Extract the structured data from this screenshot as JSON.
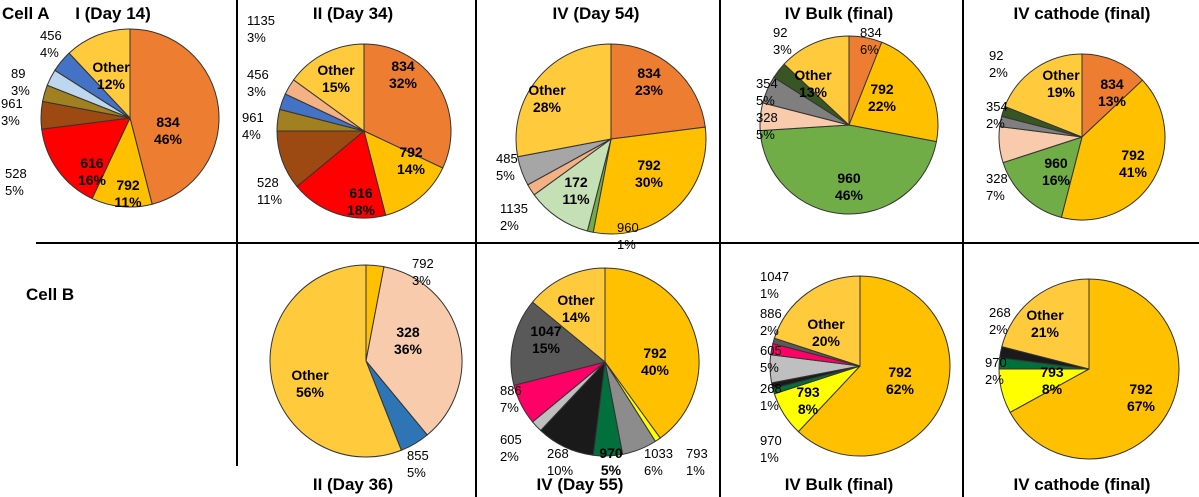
{
  "row_labels": {
    "a": "Cell A",
    "b": "Cell B"
  },
  "titles": {
    "a1": "I (Day 14)",
    "a2": "II (Day 34)",
    "a3": "IV (Day 54)",
    "a4": "IV Bulk (final)",
    "a5": "IV cathode (final)",
    "b2": "II (Day 36)",
    "b3": "IV (Day 55)",
    "b4": "IV Bulk (final)",
    "b5": "IV cathode (final)"
  },
  "colors": {
    "834": "#ED7D31",
    "792": "#FFC000",
    "616": "#FF0000",
    "528": "#9C4A12",
    "961": "#A08020",
    "89": "#BDD7EE",
    "456": "#4472C4",
    "other": "#FFCB3D",
    "1135": "#F4B183",
    "960": "#70AD47",
    "172": "#C5E0B4",
    "485": "#A6A6A6",
    "354": "#7F7F7F",
    "328": "#F8CBAD",
    "92": "#375623",
    "855": "#2E75B6",
    "1047": "#595959",
    "886": "#FF0066",
    "605": "#BFBFBF",
    "268": "#1A1A1A",
    "970": "#00703C",
    "1033": "#8C8C8C",
    "793": "#FFFF00"
  },
  "chart_data": [
    {
      "id": "a1",
      "type": "pie",
      "title": "I (Day 14)",
      "slices": [
        {
          "label": "834",
          "value": 46,
          "display": "46%",
          "color_key": "834"
        },
        {
          "label": "792",
          "value": 11,
          "display": "11%",
          "color_key": "792"
        },
        {
          "label": "616",
          "value": 16,
          "display": "16%",
          "color_key": "616"
        },
        {
          "label": "528",
          "value": 5,
          "display": "5%",
          "color_key": "528"
        },
        {
          "label": "961",
          "value": 3,
          "display": "3%",
          "color_key": "961"
        },
        {
          "label": "89",
          "value": 3,
          "display": "3%",
          "color_key": "89"
        },
        {
          "label": "456",
          "value": 4,
          "display": "4%",
          "color_key": "456"
        },
        {
          "label": "Other",
          "value": 12,
          "display": "12%",
          "color_key": "other"
        }
      ]
    },
    {
      "id": "a2",
      "type": "pie",
      "title": "II (Day 34)",
      "slices": [
        {
          "label": "834",
          "value": 32,
          "display": "32%",
          "color_key": "834"
        },
        {
          "label": "792",
          "value": 14,
          "display": "14%",
          "color_key": "792"
        },
        {
          "label": "616",
          "value": 18,
          "display": "18%",
          "color_key": "616"
        },
        {
          "label": "528",
          "value": 11,
          "display": "11%",
          "color_key": "528"
        },
        {
          "label": "961",
          "value": 4,
          "display": "4%",
          "color_key": "961"
        },
        {
          "label": "456",
          "value": 3,
          "display": "3%",
          "color_key": "456"
        },
        {
          "label": "1135",
          "value": 3,
          "display": "3%",
          "color_key": "1135"
        },
        {
          "label": "Other",
          "value": 15,
          "display": "15%",
          "color_key": "other"
        }
      ]
    },
    {
      "id": "a3",
      "type": "pie",
      "title": "IV (Day 54)",
      "slices": [
        {
          "label": "834",
          "value": 23,
          "display": "23%",
          "color_key": "834"
        },
        {
          "label": "792",
          "value": 30,
          "display": "30%",
          "color_key": "792"
        },
        {
          "label": "960",
          "value": 1,
          "display": "1%",
          "color_key": "960"
        },
        {
          "label": "172",
          "value": 11,
          "display": "11%",
          "color_key": "172"
        },
        {
          "label": "1135",
          "value": 2,
          "display": "2%",
          "color_key": "1135"
        },
        {
          "label": "485",
          "value": 5,
          "display": "5%",
          "color_key": "485"
        },
        {
          "label": "Other",
          "value": 28,
          "display": "28%",
          "color_key": "other"
        }
      ]
    },
    {
      "id": "a4",
      "type": "pie",
      "title": "IV Bulk (final)",
      "slices": [
        {
          "label": "834",
          "value": 6,
          "display": "6%",
          "color_key": "834"
        },
        {
          "label": "792",
          "value": 22,
          "display": "22%",
          "color_key": "792"
        },
        {
          "label": "960",
          "value": 46,
          "display": "46%",
          "color_key": "960"
        },
        {
          "label": "328",
          "value": 5,
          "display": "5%",
          "color_key": "328"
        },
        {
          "label": "354",
          "value": 5,
          "display": "5%",
          "color_key": "354"
        },
        {
          "label": "92",
          "value": 3,
          "display": "3%",
          "color_key": "92"
        },
        {
          "label": "Other",
          "value": 13,
          "display": "13%",
          "color_key": "other"
        }
      ]
    },
    {
      "id": "a5",
      "type": "pie",
      "title": "IV cathode (final)",
      "slices": [
        {
          "label": "834",
          "value": 13,
          "display": "13%",
          "color_key": "834"
        },
        {
          "label": "792",
          "value": 41,
          "display": "41%",
          "color_key": "792"
        },
        {
          "label": "960",
          "value": 16,
          "display": "16%",
          "color_key": "960"
        },
        {
          "label": "328",
          "value": 7,
          "display": "7%",
          "color_key": "328"
        },
        {
          "label": "354",
          "value": 2,
          "display": "2%",
          "color_key": "354"
        },
        {
          "label": "92",
          "value": 2,
          "display": "2%",
          "color_key": "92"
        },
        {
          "label": "Other",
          "value": 19,
          "display": "19%",
          "color_key": "other"
        }
      ]
    },
    {
      "id": "b2",
      "type": "pie",
      "title": "II (Day 36)",
      "slices": [
        {
          "label": "792",
          "value": 3,
          "display": "3%",
          "color_key": "792"
        },
        {
          "label": "328",
          "value": 36,
          "display": "36%",
          "color_key": "328"
        },
        {
          "label": "855",
          "value": 5,
          "display": "5%",
          "color_key": "855"
        },
        {
          "label": "Other",
          "value": 56,
          "display": "56%",
          "color_key": "other"
        }
      ]
    },
    {
      "id": "b3",
      "type": "pie",
      "title": "IV (Day 55)",
      "slices": [
        {
          "label": "792",
          "value": 40,
          "display": "40%",
          "color_key": "792"
        },
        {
          "label": "793",
          "value": 1,
          "display": "1%",
          "color_key": "793"
        },
        {
          "label": "1033",
          "value": 6,
          "display": "6%",
          "color_key": "1033"
        },
        {
          "label": "970",
          "value": 5,
          "display": "5%",
          "color_key": "970"
        },
        {
          "label": "268",
          "value": 10,
          "display": "10%",
          "color_key": "268"
        },
        {
          "label": "605",
          "value": 2,
          "display": "2%",
          "color_key": "605"
        },
        {
          "label": "886",
          "value": 7,
          "display": "7%",
          "color_key": "886"
        },
        {
          "label": "1047",
          "value": 15,
          "display": "15%",
          "color_key": "1047"
        },
        {
          "label": "Other",
          "value": 14,
          "display": "14%",
          "color_key": "other"
        }
      ]
    },
    {
      "id": "b4",
      "type": "pie",
      "title": "IV Bulk (final)",
      "slices": [
        {
          "label": "792",
          "value": 62,
          "display": "62%",
          "color_key": "792"
        },
        {
          "label": "793",
          "value": 8,
          "display": "8%",
          "color_key": "793"
        },
        {
          "label": "970",
          "value": 1,
          "display": "1%",
          "color_key": "970"
        },
        {
          "label": "268",
          "value": 1,
          "display": "1%",
          "color_key": "268"
        },
        {
          "label": "605",
          "value": 5,
          "display": "5%",
          "color_key": "605"
        },
        {
          "label": "886",
          "value": 2,
          "display": "2%",
          "color_key": "886"
        },
        {
          "label": "1047",
          "value": 1,
          "display": "1%",
          "color_key": "1047"
        },
        {
          "label": "Other",
          "value": 20,
          "display": "20%",
          "color_key": "other"
        }
      ]
    },
    {
      "id": "b5",
      "type": "pie",
      "title": "IV cathode (final)",
      "slices": [
        {
          "label": "792",
          "value": 67,
          "display": "67%",
          "color_key": "792"
        },
        {
          "label": "793",
          "value": 8,
          "display": "8%",
          "color_key": "793"
        },
        {
          "label": "970",
          "value": 2,
          "display": "2%",
          "color_key": "970"
        },
        {
          "label": "268",
          "value": 2,
          "display": "2%",
          "color_key": "268"
        },
        {
          "label": "Other",
          "value": 21,
          "display": "21%",
          "color_key": "other"
        }
      ]
    }
  ]
}
